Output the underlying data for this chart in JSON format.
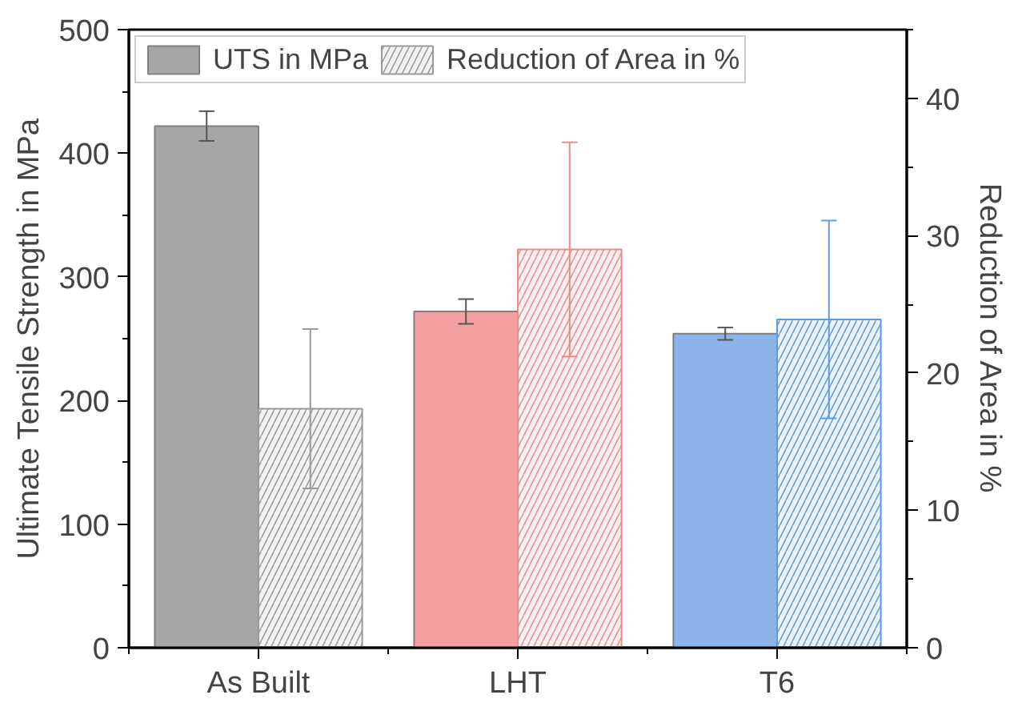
{
  "chart_data": {
    "type": "bar",
    "ylabel": "Ultimate Tensile Strength in MPa",
    "y2label": "Reduction of Area in %",
    "categories": [
      "As Built",
      "LHT",
      "T6"
    ],
    "series": [
      {
        "name": "UTS in MPa",
        "color": "#a6a6a6",
        "colors": [
          "#a6a6a6",
          "#f4a0a0",
          "#8db4e8"
        ],
        "values": [
          422,
          272,
          254
        ],
        "errors": [
          12,
          10,
          5
        ]
      },
      {
        "name": "Reduction of Area in %",
        "axis": "y2",
        "color": "#9a9a9a",
        "colors": [
          "#9a9a9a",
          "#f08888",
          "#5d9be6"
        ],
        "values": [
          17.4,
          29.0,
          23.9
        ],
        "errors": [
          5.8,
          7.8,
          7.2
        ]
      }
    ],
    "ylim": [
      0,
      500
    ],
    "yticks": [
      0,
      100,
      200,
      300,
      400,
      500
    ],
    "y2lim": [
      0,
      45
    ],
    "y2ticks": [
      0,
      10,
      20,
      30,
      40
    ],
    "legend": "top left",
    "grid": false
  }
}
